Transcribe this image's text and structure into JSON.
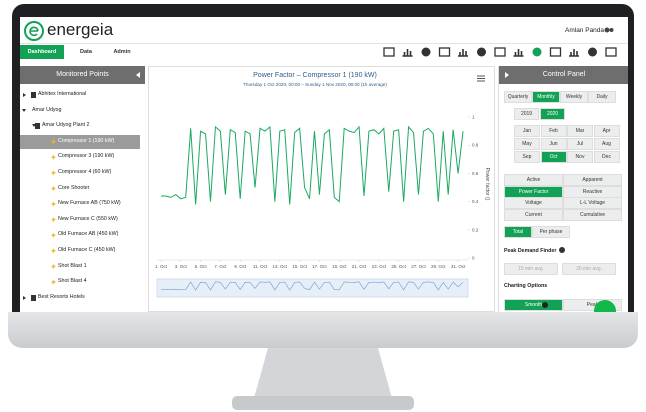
{
  "header": {
    "brand": "energeia",
    "user": "Amlan Panda"
  },
  "nav": {
    "tabs": [
      "Dashboard",
      "Data",
      "Admin"
    ],
    "active": 0
  },
  "sidebar": {
    "title": "Monitored Points",
    "selected": 3,
    "items": [
      {
        "label": "Abhitex International",
        "level": 0
      },
      {
        "label": "Amar Udyog",
        "level": 1
      },
      {
        "label": "Amar Udyog Plant 2",
        "level": 2
      },
      {
        "label": "Compressor 1 (190 kW)",
        "level": 3
      },
      {
        "label": "Compressor 3 (190 kW)",
        "level": 3
      },
      {
        "label": "Compressor 4 (60 kW)",
        "level": 3
      },
      {
        "label": "Core Shooter",
        "level": 3
      },
      {
        "label": "New Furnace AB (750 kW)",
        "level": 3
      },
      {
        "label": "New Furnace C (550 kW)",
        "level": 3
      },
      {
        "label": "Old Furnace AB (450 kW)",
        "level": 3
      },
      {
        "label": "Old Furnace C (450 kW)",
        "level": 3
      },
      {
        "label": "Shot Blast 1",
        "level": 3
      },
      {
        "label": "Shot Blast 4",
        "level": 3
      },
      {
        "label": "Best Resorts Hotels",
        "level": 0
      }
    ]
  },
  "chart_data": {
    "type": "line",
    "title": "Power Factor – Compressor 1 (190 kW)",
    "subtitle": "Thursday 1 Oct 2020, 00:00 – Sunday 1 Nov 2020, 00:00 (1h average)",
    "y_label": "Power factor ()",
    "x": [
      1,
      1.5,
      2,
      2.5,
      3,
      3.5,
      4,
      4.5,
      5,
      5.5,
      6,
      6.5,
      7,
      7.5,
      8,
      8.5,
      9,
      9.5,
      10,
      10.5,
      11,
      11.5,
      12,
      12.5,
      13,
      13.5,
      14,
      14.5,
      15,
      15.5,
      16,
      16.5,
      17,
      17.5,
      18,
      18.5,
      19,
      19.5,
      20,
      20.5,
      21,
      21.5,
      22,
      22.5,
      23,
      23.5,
      24,
      24.5,
      25,
      25.5,
      26,
      26.5,
      27,
      27.5,
      28,
      28.5,
      29,
      29.5,
      30,
      30.5,
      31,
      31.5
    ],
    "series": [
      {
        "color": "#1aaa60",
        "values": [
          0.44,
          0.44,
          0.43,
          0.45,
          0.42,
          0.43,
          0.92,
          0.38,
          0.9,
          0.88,
          0.4,
          0.93,
          0.9,
          0.45,
          0.91,
          0.89,
          0.42,
          0.9,
          0.88,
          0.5,
          0.92,
          0.9,
          0.93,
          0.4,
          0.9,
          0.91,
          0.38,
          0.89,
          0.92,
          0.5,
          0.42,
          0.9,
          0.45,
          0.88,
          0.91,
          0.43,
          0.4,
          0.92,
          0.9,
          0.89,
          0.93,
          0.44,
          0.9,
          0.91,
          0.88,
          0.92,
          0.47,
          0.9,
          0.91,
          0.4,
          0.93,
          0.89,
          0.45,
          0.9,
          0.92,
          0.88,
          0.4,
          0.9,
          0.45,
          0.91,
          0.6,
          0.9
        ]
      }
    ],
    "xlim": [
      0.6,
      32
    ],
    "ylim": [
      0,
      1.05
    ],
    "yticks": [
      0,
      0.2,
      0.4,
      0.6,
      0.8,
      1
    ],
    "xticks": [
      {
        "value": 1,
        "label": "1. Oct"
      },
      {
        "value": 3,
        "label": "3. Oct"
      },
      {
        "value": 5,
        "label": "5. Oct"
      },
      {
        "value": 7,
        "label": "7. Oct"
      },
      {
        "value": 9,
        "label": "9. Oct"
      },
      {
        "value": 11,
        "label": "11. Oct"
      },
      {
        "value": 13,
        "label": "13. Oct"
      },
      {
        "value": 15,
        "label": "15. Oct"
      },
      {
        "value": 17,
        "label": "17. Oct"
      },
      {
        "value": 19,
        "label": "19. Oct"
      },
      {
        "value": 21,
        "label": "21. Oct"
      },
      {
        "value": 23,
        "label": "23. Oct"
      },
      {
        "value": 25,
        "label": "25. Oct"
      },
      {
        "value": 27,
        "label": "27. Oct"
      },
      {
        "value": 29,
        "label": "29. Oct"
      },
      {
        "value": 31,
        "label": "31. Oct"
      }
    ]
  },
  "control_panel": {
    "title": "Control Panel",
    "periods": [
      "Quarterly",
      "Monthly",
      "Weekly",
      "Daily"
    ],
    "active_period": 1,
    "years": [
      "2019",
      "2020"
    ],
    "active_year": 1,
    "months": [
      "Jan",
      "Feb",
      "Mar",
      "Apr",
      "May",
      "Jun",
      "Jul",
      "Aug",
      "Sep",
      "Oct",
      "Nov",
      "Dec"
    ],
    "active_month": 9,
    "measures": [
      "Active",
      "Apparent",
      "Power Factor",
      "Reactive",
      "Voltage",
      "L-L Voltage",
      "Current",
      "Cumulative"
    ],
    "active_measure": 2,
    "phases": [
      "Total",
      "Per phase"
    ],
    "active_phase": 0,
    "peak_title": "Peak Demand Finder",
    "peak_options": [
      "15 min avg.",
      "30 min avg."
    ],
    "charting_title": "Charting Options",
    "charting": [
      "Smooth",
      "Peak"
    ],
    "active_charting": 0
  }
}
